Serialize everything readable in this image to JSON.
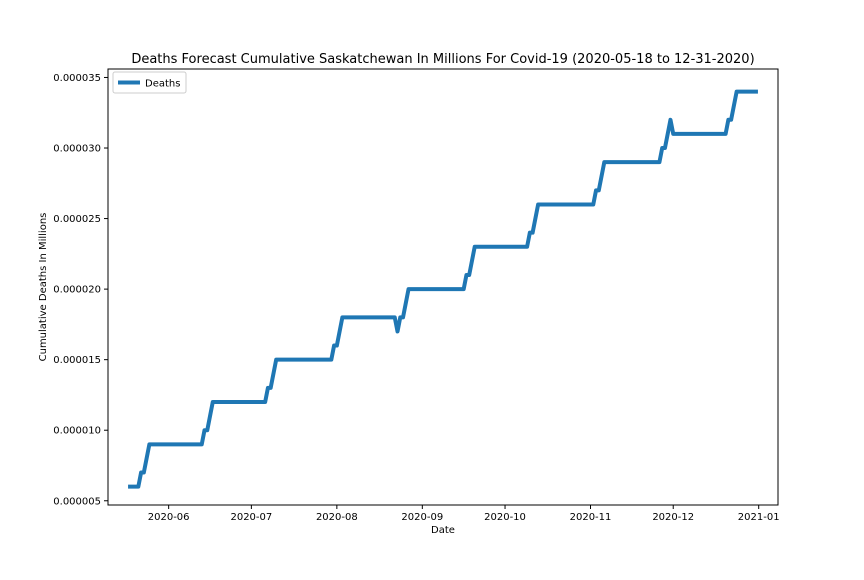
{
  "chart_data": {
    "type": "line",
    "title": "Deaths Forecast Cumulative Saskatchewan In Millions For Covid-19 (2020-05-18 to 12-31-2020)",
    "xlabel": "Date",
    "ylabel": "Cumulative Deaths In Millions",
    "x_range": [
      "2020-05-10",
      "2021-01-08"
    ],
    "ylim": [
      4.7e-06,
      3.56e-05
    ],
    "x_ticks": [
      "2020-06",
      "2020-07",
      "2020-08",
      "2020-09",
      "2020-10",
      "2020-11",
      "2020-12",
      "2021-01"
    ],
    "y_ticks": [
      "0.000005",
      "0.000010",
      "0.000015",
      "0.000020",
      "0.000025",
      "0.000030",
      "0.000035"
    ],
    "grid": false,
    "legend": {
      "position": "top-left",
      "entries": [
        "Deaths"
      ]
    },
    "color": "#1f77b4",
    "series": [
      {
        "name": "Deaths",
        "points": [
          [
            "2020-05-18",
            6e-06
          ],
          [
            "2020-05-21",
            6e-06
          ],
          [
            "2020-05-22",
            7e-06
          ],
          [
            "2020-05-23",
            7e-06
          ],
          [
            "2020-05-25",
            9e-06
          ],
          [
            "2020-06-13",
            9e-06
          ],
          [
            "2020-06-14",
            1e-05
          ],
          [
            "2020-06-15",
            1e-05
          ],
          [
            "2020-06-17",
            1.2e-05
          ],
          [
            "2020-07-06",
            1.2e-05
          ],
          [
            "2020-07-07",
            1.3e-05
          ],
          [
            "2020-07-08",
            1.3e-05
          ],
          [
            "2020-07-10",
            1.5e-05
          ],
          [
            "2020-07-30",
            1.5e-05
          ],
          [
            "2020-07-31",
            1.6e-05
          ],
          [
            "2020-08-01",
            1.6e-05
          ],
          [
            "2020-08-03",
            1.8e-05
          ],
          [
            "2020-08-22",
            1.8e-05
          ],
          [
            "2020-08-23",
            1.7e-05
          ],
          [
            "2020-08-24",
            1.8e-05
          ],
          [
            "2020-08-25",
            1.8e-05
          ],
          [
            "2020-08-27",
            2e-05
          ],
          [
            "2020-09-16",
            2e-05
          ],
          [
            "2020-09-17",
            2.1e-05
          ],
          [
            "2020-09-18",
            2.1e-05
          ],
          [
            "2020-09-20",
            2.3e-05
          ],
          [
            "2020-10-09",
            2.3e-05
          ],
          [
            "2020-10-10",
            2.4e-05
          ],
          [
            "2020-10-11",
            2.4e-05
          ],
          [
            "2020-10-13",
            2.6e-05
          ],
          [
            "2020-11-02",
            2.6e-05
          ],
          [
            "2020-11-03",
            2.7e-05
          ],
          [
            "2020-11-04",
            2.7e-05
          ],
          [
            "2020-11-06",
            2.9e-05
          ],
          [
            "2020-11-26",
            2.9e-05
          ],
          [
            "2020-11-27",
            3e-05
          ],
          [
            "2020-11-28",
            3e-05
          ],
          [
            "2020-11-30",
            3.2e-05
          ],
          [
            "2020-12-01",
            3.1e-05
          ],
          [
            "2020-12-20",
            3.1e-05
          ],
          [
            "2020-12-21",
            3.2e-05
          ],
          [
            "2020-12-22",
            3.2e-05
          ],
          [
            "2020-12-24",
            3.4e-05
          ],
          [
            "2020-12-31",
            3.4e-05
          ]
        ]
      }
    ]
  }
}
